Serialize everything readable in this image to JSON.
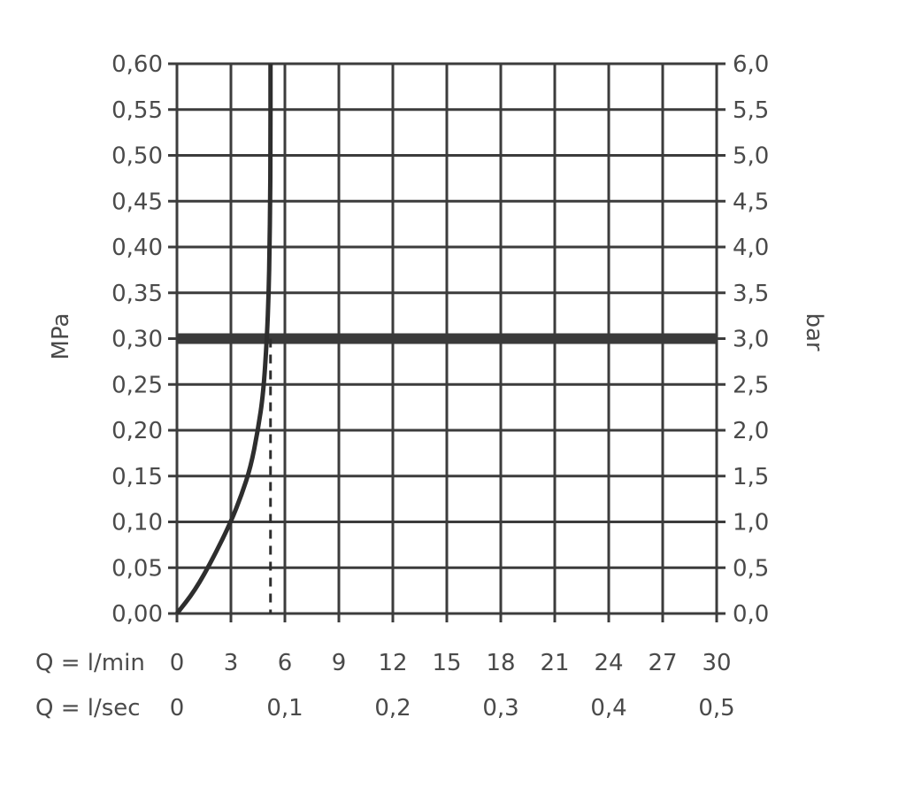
{
  "chart_data": {
    "type": "line",
    "title": "",
    "ylabel_left": "MPa",
    "ylabel_right": "bar",
    "xlabel_row1": "Q = l/min",
    "xlabel_row2": "Q = l/sec",
    "x_ticks_lmin": [
      "0",
      "3",
      "6",
      "9",
      "12",
      "15",
      "18",
      "21",
      "24",
      "27",
      "30"
    ],
    "x_ticks_lsec": [
      {
        "value": 0,
        "label": "0"
      },
      {
        "value": 6,
        "label": "0,1"
      },
      {
        "value": 12,
        "label": "0,2"
      },
      {
        "value": 18,
        "label": "0,3"
      },
      {
        "value": 24,
        "label": "0,4"
      },
      {
        "value": 30,
        "label": "0,5"
      }
    ],
    "y_ticks_mpa": [
      "0,00",
      "0,05",
      "0,10",
      "0,15",
      "0,20",
      "0,25",
      "0,30",
      "0,35",
      "0,40",
      "0,45",
      "0,50",
      "0,55",
      "0,60"
    ],
    "y_ticks_bar": [
      "0,0",
      "0,5",
      "1,0",
      "1,5",
      "2,0",
      "2,5",
      "3,0",
      "3,5",
      "4,0",
      "4,5",
      "5,0",
      "5,5",
      "6,0"
    ],
    "xlim": [
      0,
      30
    ],
    "ylim": [
      0,
      0.6
    ],
    "grid": true,
    "series": [
      {
        "x": [
          0,
          1,
          2,
          3,
          3.6,
          4.1,
          4.5,
          4.8,
          5.0,
          5.1,
          5.15,
          5.18,
          5.2,
          5.2
        ],
        "y": [
          0,
          0.025,
          0.06,
          0.1,
          0.13,
          0.16,
          0.2,
          0.24,
          0.3,
          0.35,
          0.4,
          0.45,
          0.5,
          0.6
        ]
      }
    ],
    "reference_line_y": 0.3,
    "marker_x": 5.2,
    "colors": {
      "grid": "#3c3c3c",
      "curve": "#2e2e2e",
      "reference": "#3a3a3a",
      "text": "#4a4a4a"
    }
  }
}
